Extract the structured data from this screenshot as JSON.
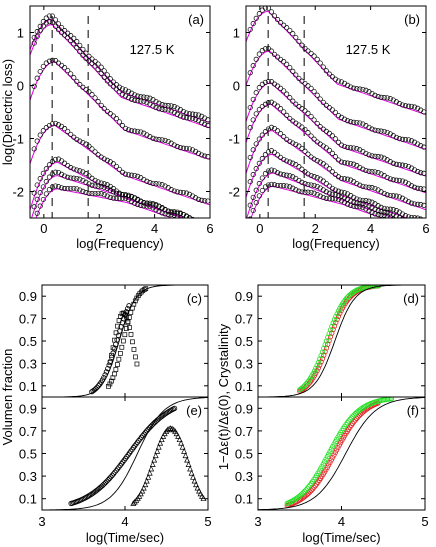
{
  "colors": {
    "magenta": "#e000e0",
    "red": "#e02020",
    "green": "#20e020",
    "black": "#000000"
  },
  "top": {
    "ylabel": "log(Dielectric loss)",
    "xlabel": "log(Frequency)",
    "xticks": [
      "0",
      "2",
      "4",
      "6"
    ],
    "yticks": [
      "1",
      "0",
      "-1",
      "-2"
    ],
    "xlim": [
      -0.5,
      6
    ],
    "ylim": [
      -2.5,
      1.5
    ],
    "dashed_x": [
      0.3,
      1.6
    ]
  },
  "bottom": {
    "ylabel_left": "Volumen fraction",
    "ylabel_right": "1−Δε(t)/Δε(0), Crystalinity",
    "xlabel": "log(Time/sec)",
    "xticks": [
      "3",
      "4",
      "5"
    ],
    "yticks": [
      "0.1",
      "0.3",
      "0.5",
      "0.7",
      "0.9"
    ],
    "xlim": [
      3,
      5
    ],
    "ylim": [
      0,
      1
    ]
  },
  "chart_data": [
    {
      "panel": "a",
      "type": "line",
      "annotation": "127.5 K",
      "xlim": [
        -0.5,
        6
      ],
      "ylim": [
        -2.5,
        1.5
      ],
      "series": [
        {
          "peak": 1.3,
          "fpeak": 0.3,
          "w": 0.9,
          "hf": 1.6
        },
        {
          "peak": 1.2,
          "fpeak": 0.3,
          "w": 0.9,
          "hf": 1.6
        },
        {
          "peak": 0.5,
          "fpeak": 0.4,
          "w": 0.95,
          "hf": 1.5
        },
        {
          "peak": -0.7,
          "fpeak": 0.4,
          "w": 0.95,
          "hf": 1.1
        },
        {
          "peak": -1.4,
          "fpeak": 0.5,
          "w": 0.9,
          "hf": 0.8
        },
        {
          "peak": -1.65,
          "fpeak": 0.5,
          "w": 0.9,
          "hf": 0.5
        },
        {
          "peak": -1.9,
          "fpeak": 0.5,
          "w": 0.9,
          "hf": 0.3
        }
      ]
    },
    {
      "panel": "b",
      "type": "line",
      "annotation": "127.5 K",
      "xlim": [
        -0.5,
        6
      ],
      "ylim": [
        -2.5,
        1.5
      ],
      "series": [
        {
          "peak": 1.45,
          "fpeak": 0.3,
          "w": 0.9,
          "hf": 1.6
        },
        {
          "peak": 0.7,
          "fpeak": 0.35,
          "w": 0.95,
          "hf": 1.5
        },
        {
          "peak": 0.1,
          "fpeak": 0.4,
          "w": 0.95,
          "hf": 1.4
        },
        {
          "peak": -0.3,
          "fpeak": 0.4,
          "w": 0.95,
          "hf": 1.3
        },
        {
          "peak": -0.8,
          "fpeak": 0.45,
          "w": 0.95,
          "hf": 1.1
        },
        {
          "peak": -1.25,
          "fpeak": 0.45,
          "w": 0.9,
          "hf": 0.9
        },
        {
          "peak": -1.6,
          "fpeak": 0.5,
          "w": 0.9,
          "hf": 0.6
        },
        {
          "peak": -1.85,
          "fpeak": 0.5,
          "w": 0.9,
          "hf": 0.4
        }
      ]
    },
    {
      "panel": "c",
      "type": "scatter",
      "xlim": [
        3,
        5
      ],
      "ylim": [
        0,
        1
      ],
      "series": [
        {
          "kind": "line",
          "name": "",
          "x0": 3.93,
          "s": 0.1
        },
        {
          "kind": "circle",
          "x0": 3.9,
          "s": 0.1,
          "from": 3.6,
          "to": 4.05
        },
        {
          "kind": "square-rise",
          "x0": 3.98,
          "s": 0.08,
          "from": 3.8,
          "to": 4.25
        },
        {
          "kind": "square-hump",
          "center": 3.98,
          "height": 0.75,
          "width": 0.12,
          "from": 3.82,
          "to": 4.15
        }
      ]
    },
    {
      "panel": "d",
      "type": "scatter",
      "xlim": [
        3,
        5
      ],
      "ylim": [
        0,
        1
      ],
      "series": [
        {
          "kind": "line",
          "x0": 3.92,
          "s": 0.12
        },
        {
          "kind": "red-circle",
          "x0": 3.85,
          "s": 0.12,
          "from": 3.5,
          "to": 4.45
        },
        {
          "kind": "green-circle",
          "x0": 3.82,
          "s": 0.12,
          "from": 3.5,
          "to": 4.45
        }
      ]
    },
    {
      "panel": "e",
      "type": "scatter",
      "xlim": [
        3,
        5
      ],
      "ylim": [
        0,
        1
      ],
      "series": [
        {
          "kind": "line",
          "x0": 4.15,
          "s": 0.16
        },
        {
          "kind": "circle",
          "x0": 4.05,
          "s": 0.25,
          "from": 3.35,
          "to": 4.6
        },
        {
          "kind": "triangle-hump",
          "center": 4.55,
          "height": 0.72,
          "width": 0.2,
          "from": 4.1,
          "to": 4.95
        }
      ]
    },
    {
      "panel": "f",
      "type": "scatter",
      "xlim": [
        3,
        5
      ],
      "ylim": [
        0,
        1
      ],
      "series": [
        {
          "kind": "line",
          "x0": 4.05,
          "s": 0.18
        },
        {
          "kind": "red-circle",
          "x0": 3.92,
          "s": 0.18,
          "from": 3.35,
          "to": 4.45
        },
        {
          "kind": "green-circle",
          "x0": 3.85,
          "s": 0.18,
          "from": 3.35,
          "to": 4.6
        }
      ]
    }
  ]
}
